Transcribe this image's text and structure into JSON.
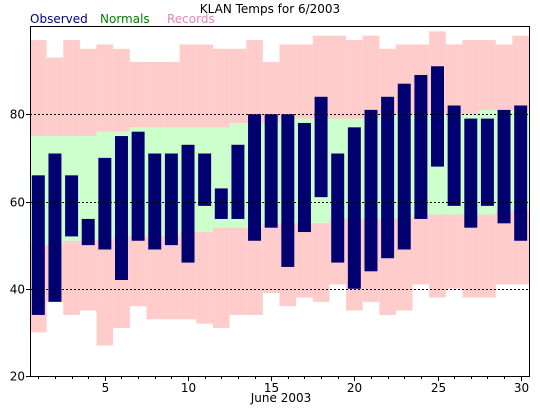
{
  "chart_data": {
    "type": "bar",
    "title": "KLAN Temps for 6/2003",
    "xlabel": "June 2003",
    "ylabel": "",
    "xlim": [
      0.5,
      30.5
    ],
    "ylim": [
      20,
      100
    ],
    "x_ticks": [
      5,
      10,
      15,
      20,
      25,
      30
    ],
    "y_ticks": [
      20,
      40,
      60,
      80
    ],
    "dashed_gridlines": [
      40,
      60,
      80
    ],
    "legend": [
      {
        "label": "Observed",
        "color": "#000080"
      },
      {
        "label": "Normals",
        "color": "#008000"
      },
      {
        "label": "Records",
        "color": "#e088c0"
      }
    ],
    "days": [
      1,
      2,
      3,
      4,
      5,
      6,
      7,
      8,
      9,
      10,
      11,
      12,
      13,
      14,
      15,
      16,
      17,
      18,
      19,
      20,
      21,
      22,
      23,
      24,
      25,
      26,
      27,
      28,
      29,
      30
    ],
    "series": [
      {
        "name": "Records",
        "color": "#ffcccc",
        "high": [
          97,
          93,
          97,
          95,
          96,
          95,
          92,
          92,
          92,
          96,
          96,
          95,
          95,
          97,
          92,
          96,
          96,
          98,
          98,
          97,
          98,
          95,
          96,
          96,
          99,
          96,
          97,
          97,
          96,
          98
        ],
        "low": [
          30,
          37,
          34,
          35,
          27,
          31,
          36,
          33,
          33,
          33,
          32,
          31,
          34,
          34,
          39,
          36,
          38,
          37,
          41,
          35,
          37,
          34,
          35,
          41,
          38,
          40,
          38,
          38,
          41,
          41
        ]
      },
      {
        "name": "Normals",
        "color": "#ccffcc",
        "high": [
          75,
          75,
          75,
          75,
          76,
          76,
          77,
          77,
          77,
          77,
          77,
          77,
          78,
          78,
          78,
          79,
          79,
          79,
          79,
          79,
          79,
          80,
          80,
          80,
          80,
          80,
          80,
          81,
          81,
          81
        ],
        "low": [
          50,
          50,
          51,
          51,
          51,
          52,
          52,
          52,
          52,
          53,
          53,
          54,
          54,
          54,
          55,
          55,
          55,
          55,
          56,
          56,
          56,
          56,
          56,
          57,
          57,
          57,
          57,
          57,
          58,
          58
        ]
      },
      {
        "name": "Observed",
        "color": "#000070",
        "high": [
          66,
          71,
          66,
          56,
          70,
          75,
          76,
          71,
          71,
          73,
          71,
          63,
          73,
          80,
          80,
          80,
          78,
          84,
          71,
          77,
          81,
          84,
          87,
          89,
          91,
          82,
          79,
          79,
          81,
          82
        ],
        "low": [
          34,
          37,
          52,
          50,
          49,
          42,
          51,
          49,
          50,
          46,
          59,
          56,
          56,
          51,
          54,
          45,
          53,
          61,
          46,
          40,
          44,
          47,
          49,
          56,
          68,
          59,
          54,
          59,
          55,
          51
        ]
      }
    ]
  }
}
